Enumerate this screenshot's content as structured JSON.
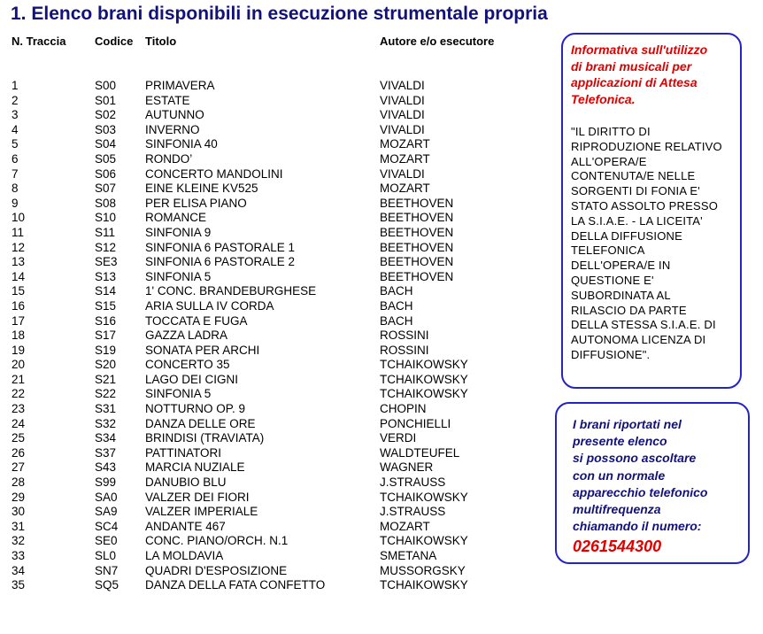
{
  "title": "1.  Elenco brani disponibili in esecuzione strumentale propria",
  "headers": {
    "track": "N. Traccia",
    "code": "Codice",
    "title": "Titolo",
    "author": "Autore e/o esecutore"
  },
  "tracks": [
    {
      "n": "1",
      "code": "S00",
      "title": "PRIMAVERA",
      "author": "VIVALDI"
    },
    {
      "n": "2",
      "code": "S01",
      "title": "ESTATE",
      "author": "VIVALDI"
    },
    {
      "n": "3",
      "code": "S02",
      "title": "AUTUNNO",
      "author": "VIVALDI"
    },
    {
      "n": "4",
      "code": "S03",
      "title": "INVERNO",
      "author": "VIVALDI"
    },
    {
      "n": "5",
      "code": "S04",
      "title": "SINFONIA 40",
      "author": "MOZART"
    },
    {
      "n": "6",
      "code": "S05",
      "title": "RONDO’",
      "author": "MOZART"
    },
    {
      "n": "7",
      "code": "S06",
      "title": "CONCERTO MANDOLINI",
      "author": "VIVALDI"
    },
    {
      "n": "8",
      "code": "S07",
      "title": "EINE KLEINE KV525",
      "author": "MOZART"
    },
    {
      "n": "9",
      "code": "S08",
      "title": "PER ELISA PIANO",
      "author": "BEETHOVEN"
    },
    {
      "n": "10",
      "code": "S10",
      "title": "ROMANCE",
      "author": "BEETHOVEN"
    },
    {
      "n": "11",
      "code": "S11",
      "title": "SINFONIA 9",
      "author": "BEETHOVEN"
    },
    {
      "n": "12",
      "code": "S12",
      "title": "SINFONIA 6 PASTORALE 1",
      "author": "BEETHOVEN"
    },
    {
      "n": "13",
      "code": "SE3",
      "title": "SINFONIA 6 PASTORALE 2",
      "author": "BEETHOVEN"
    },
    {
      "n": "14",
      "code": "S13",
      "title": "SINFONIA 5",
      "author": "BEETHOVEN"
    },
    {
      "n": "15",
      "code": "S14",
      "title": "1' CONC. BRANDEBURGHESE",
      "author": "BACH"
    },
    {
      "n": "16",
      "code": "S15",
      "title": "ARIA SULLA IV CORDA",
      "author": "BACH"
    },
    {
      "n": "17",
      "code": "S16",
      "title": "TOCCATA E FUGA",
      "author": "BACH"
    },
    {
      "n": "18",
      "code": "S17",
      "title": "GAZZA LADRA",
      "author": "ROSSINI"
    },
    {
      "n": "19",
      "code": "S19",
      "title": "SONATA PER ARCHI",
      "author": "ROSSINI"
    },
    {
      "n": "20",
      "code": "S20",
      "title": "CONCERTO 35",
      "author": "TCHAIKOWSKY"
    },
    {
      "n": "21",
      "code": "S21",
      "title": "LAGO DEI CIGNI",
      "author": "TCHAIKOWSKY"
    },
    {
      "n": "22",
      "code": "S22",
      "title": "SINFONIA 5",
      "author": "TCHAIKOWSKY"
    },
    {
      "n": "23",
      "code": "S31",
      "title": "NOTTURNO OP. 9",
      "author": "CHOPIN"
    },
    {
      "n": "24",
      "code": "S32",
      "title": "DANZA DELLE ORE",
      "author": "PONCHIELLI"
    },
    {
      "n": "25",
      "code": "S34",
      "title": "BRINDISI (TRAVIATA)",
      "author": "VERDI"
    },
    {
      "n": "26",
      "code": "S37",
      "title": "PATTINATORI",
      "author": "WALDTEUFEL"
    },
    {
      "n": "27",
      "code": "S43",
      "title": "MARCIA NUZIALE",
      "author": "WAGNER"
    },
    {
      "n": "28",
      "code": "S99",
      "title": "DANUBIO BLU",
      "author": "J.STRAUSS"
    },
    {
      "n": "29",
      "code": "SA0",
      "title": "VALZER DEI FIORI",
      "author": "TCHAIKOWSKY"
    },
    {
      "n": "30",
      "code": "SA9",
      "title": "VALZER IMPERIALE",
      "author": "J.STRAUSS"
    },
    {
      "n": "31",
      "code": "SC4",
      "title": "ANDANTE 467",
      "author": "MOZART"
    },
    {
      "n": "32",
      "code": "SE0",
      "title": "CONC. PIANO/ORCH. N.1",
      "author": "TCHAIKOWSKY"
    },
    {
      "n": "33",
      "code": "SL0",
      "title": "LA MOLDAVIA",
      "author": "SMETANA"
    },
    {
      "n": "34",
      "code": "SN7",
      "title": "QUADRI D'ESPOSIZIONE",
      "author": "MUSSORGSKY"
    },
    {
      "n": "35",
      "code": "SQ5",
      "title": "DANZA DELLA FATA CONFETTO",
      "author": "TCHAIKOWSKY"
    }
  ],
  "info_box": {
    "heading_lines": [
      "Informativa sull'utilizzo",
      "di brani musicali per",
      "applicazioni di Attesa",
      "Telefonica."
    ],
    "body_lines": [
      "\"IL DIRITTO DI",
      "RIPRODUZIONE RELATIVO",
      "ALL'OPERA/E",
      "CONTENUTA/E NELLE",
      "SORGENTI DI FONIA E'",
      "STATO ASSOLTO PRESSO",
      "LA S.I.A.E. - LA LICEITA'",
      "DELLA DIFFUSIONE",
      "TELEFONICA",
      "DELL'OPERA/E IN",
      "QUESTIONE E'",
      "SUBORDINATA AL",
      "RILASCIO DA PARTE",
      "DELLA STESSA S.I.A.E. DI",
      "AUTONOMA LICENZA DI",
      "DIFFUSIONE\"."
    ]
  },
  "phone_box": {
    "text_lines": [
      "I brani riportati nel",
      "presente elenco",
      "si possono ascoltare",
      "con un normale",
      "apparecchio telefonico",
      "multifrequenza",
      "chiamando il numero:"
    ],
    "number": "0261544300"
  }
}
